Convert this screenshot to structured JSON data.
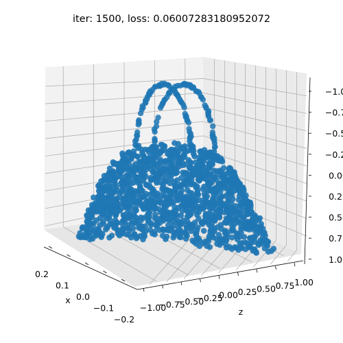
{
  "chart_data": {
    "type": "scatter",
    "projection": "3d",
    "title": "iter: 1500, loss: 0.06007283180952072",
    "xlabel": "x",
    "ylabel": "",
    "zlabel": "z",
    "grid": true,
    "point_color": "#1f77b4",
    "pane_color": "#f2f2f2",
    "axes": {
      "x": {
        "ticks": [
          "0.2",
          "0.1",
          "0.0",
          "−0.1",
          "−0.2"
        ]
      },
      "z": {
        "ticks": [
          "−1.00",
          "−0.75",
          "−0.50",
          "−0.25",
          "0.00",
          "0.25",
          "0.50",
          "0.75",
          "1.00"
        ]
      },
      "v": {
        "ticks": [
          "−1.00",
          "−0.75",
          "−0.50",
          "−0.25",
          "0.00",
          "0.25",
          "0.50",
          "0.75",
          "1.00"
        ]
      }
    },
    "series": [
      {
        "shape": "handbag point cloud",
        "points_shown_approx": 2000,
        "body": {
          "vertical_range": [
            -0.3,
            0.95
          ],
          "z_range": [
            -0.95,
            0.95
          ]
        },
        "handle": {
          "vertical_range": [
            -1.05,
            -0.3
          ],
          "z_range": [
            -0.35,
            0.3
          ]
        }
      }
    ]
  }
}
